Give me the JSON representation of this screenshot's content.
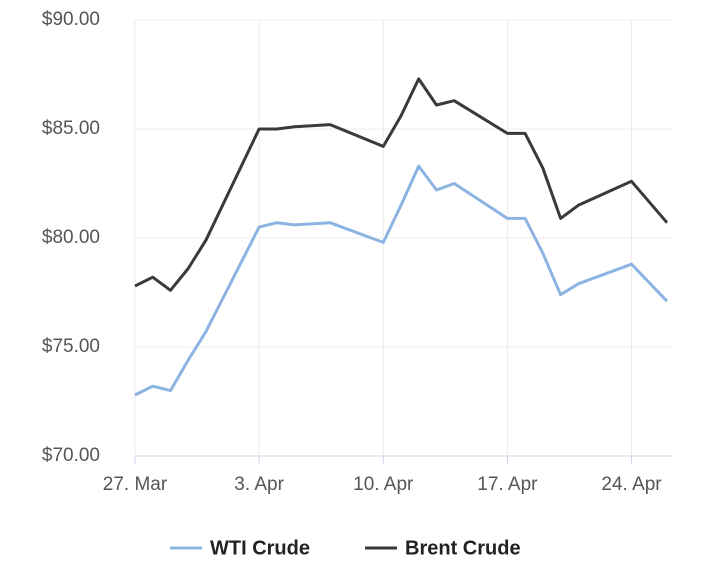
{
  "chart_data": {
    "type": "line",
    "x": [
      "27. Mar",
      "28. Mar",
      "29. Mar",
      "30. Mar",
      "31. Mar",
      "3. Apr",
      "4. Apr",
      "5. Apr",
      "7. Apr",
      "10. Apr",
      "11. Apr",
      "12. Apr",
      "13. Apr",
      "14. Apr",
      "17. Apr",
      "18. Apr",
      "19. Apr",
      "20. Apr",
      "21. Apr",
      "24. Apr",
      "26. Apr"
    ],
    "series": [
      {
        "name": "WTI Crude",
        "color": "#8cb4e3",
        "values": [
          72.8,
          73.2,
          73.0,
          74.4,
          75.7,
          80.5,
          80.7,
          80.6,
          80.7,
          79.8,
          81.5,
          83.3,
          82.2,
          82.5,
          80.9,
          80.9,
          79.3,
          77.4,
          77.9,
          78.8,
          77.1
        ]
      },
      {
        "name": "Brent Crude",
        "color": "#3a3a3c",
        "values": [
          77.8,
          78.2,
          77.6,
          78.6,
          79.9,
          85.0,
          85.0,
          85.1,
          85.2,
          84.2,
          85.6,
          87.3,
          86.1,
          86.3,
          84.8,
          84.8,
          83.2,
          80.9,
          81.5,
          82.6,
          80.7
        ]
      }
    ],
    "xlim": [
      "27. Mar",
      "26. Apr"
    ],
    "xticks": [
      "27. Mar",
      "3. Apr",
      "10. Apr",
      "17. Apr",
      "24. Apr"
    ],
    "ylim": [
      70,
      90
    ],
    "yticks": [
      {
        "value": 70,
        "label": "$70.00"
      },
      {
        "value": 75,
        "label": "$75.00"
      },
      {
        "value": 80,
        "label": "$80.00"
      },
      {
        "value": 85,
        "label": "$85.00"
      },
      {
        "value": 90,
        "label": "$90.00"
      }
    ],
    "grid": true
  }
}
